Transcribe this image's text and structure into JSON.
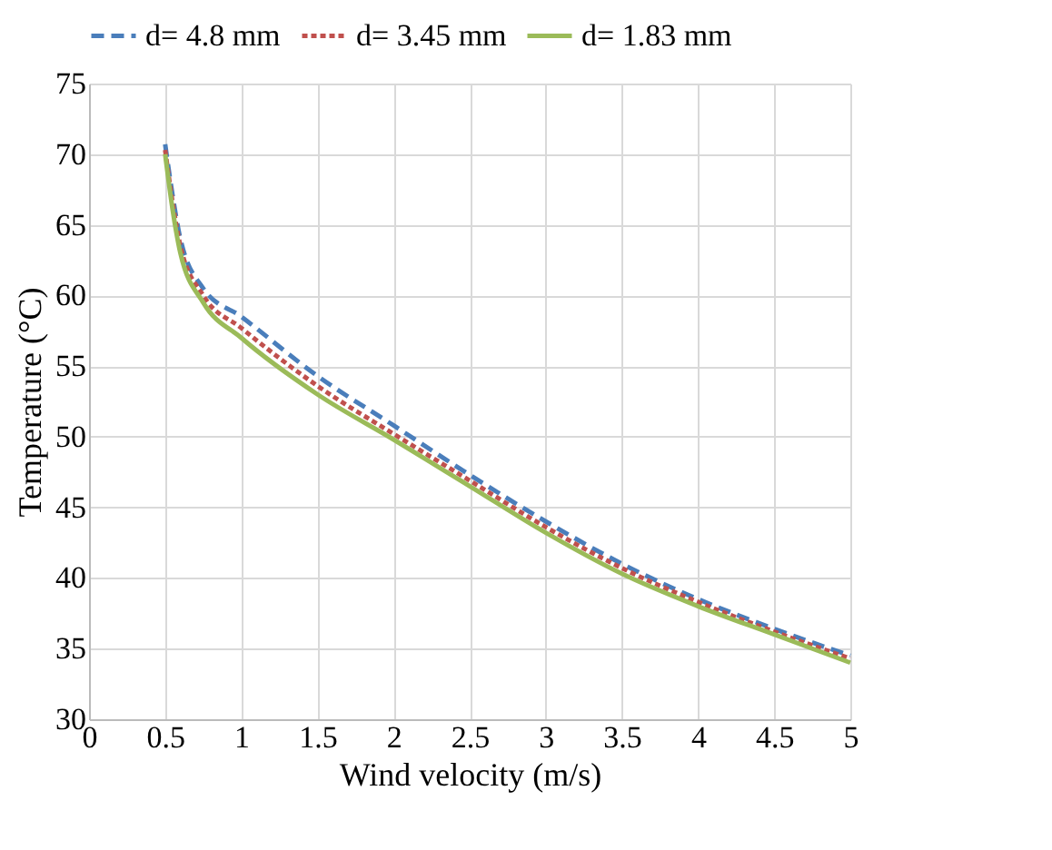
{
  "chart_data": {
    "type": "line",
    "xlabel": "Wind velocity (m/s)",
    "ylabel": "Temperature (°C)",
    "xlim": [
      0,
      5
    ],
    "xticks": [
      0,
      0.5,
      1,
      1.5,
      2,
      2.5,
      3,
      3.5,
      4,
      4.5,
      5
    ],
    "ylim": [
      30,
      75
    ],
    "yticks": [
      30,
      35,
      40,
      45,
      50,
      55,
      60,
      65,
      70,
      75
    ],
    "grid": true,
    "legend": "top",
    "marker": "none",
    "x": [
      0.5,
      0.55,
      0.6,
      0.75,
      1,
      1.5,
      2,
      2.5,
      3,
      3.5,
      4,
      4.5,
      5
    ],
    "series": [
      {
        "name": "d= 4.8 mm",
        "color": "#4a7ebb",
        "line_style": "dashed",
        "values": [
          70.7,
          67,
          64,
          60.5,
          58.5,
          54.3,
          50.8,
          47.3,
          44,
          41,
          38.5,
          36.4,
          34.5
        ]
      },
      {
        "name": "d= 3.45 mm",
        "color": "#c0504d",
        "line_style": "dotted",
        "values": [
          70.3,
          66.5,
          63.5,
          60,
          57.7,
          53.6,
          50.2,
          46.9,
          43.6,
          40.7,
          38.3,
          36.2,
          34.3
        ]
      },
      {
        "name": "d= 1.83 mm",
        "color": "#9bbb59",
        "line_style": "solid",
        "values": [
          70,
          66,
          63,
          59.5,
          57,
          53,
          49.8,
          46.5,
          43.2,
          40.3,
          38,
          36,
          34
        ]
      }
    ]
  }
}
